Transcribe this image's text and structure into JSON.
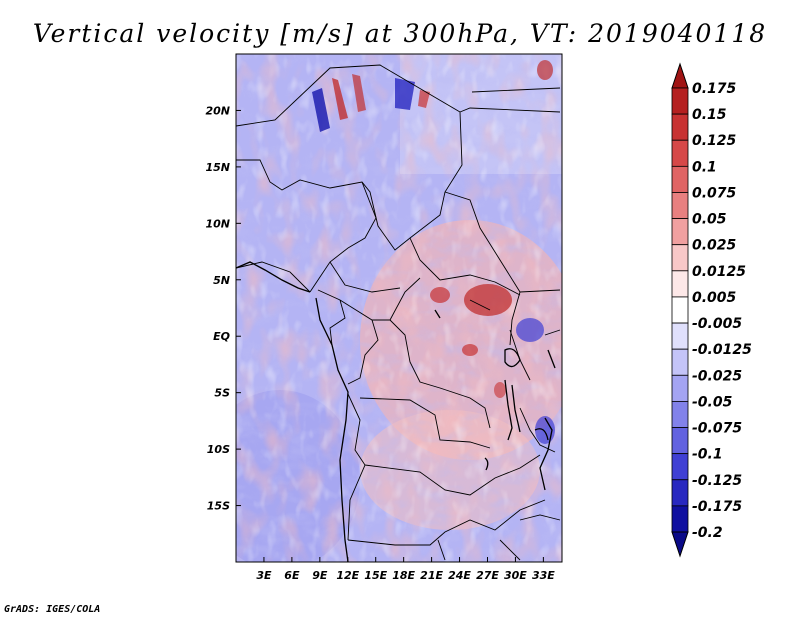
{
  "credit": "GrADS: IGES/COLA",
  "chart_data": {
    "type": "heatmap",
    "title": "Vertical velocity [m/s] at 300hPa, VT: 2019040118",
    "variable": "Vertical velocity",
    "units": "m/s",
    "level": "300hPa",
    "valid_time": "2019040118",
    "x_range": [
      0,
      35
    ],
    "y_range": [
      -20,
      25
    ],
    "x_ticks": [
      {
        "value": 3,
        "label": "3E"
      },
      {
        "value": 6,
        "label": "6E"
      },
      {
        "value": 9,
        "label": "9E"
      },
      {
        "value": 12,
        "label": "12E"
      },
      {
        "value": 15,
        "label": "15E"
      },
      {
        "value": 18,
        "label": "18E"
      },
      {
        "value": 21,
        "label": "21E"
      },
      {
        "value": 24,
        "label": "24E"
      },
      {
        "value": 27,
        "label": "27E"
      },
      {
        "value": 30,
        "label": "30E"
      },
      {
        "value": 33,
        "label": "33E"
      }
    ],
    "y_ticks": [
      {
        "value": 20,
        "label": "20N"
      },
      {
        "value": 15,
        "label": "15N"
      },
      {
        "value": 10,
        "label": "10N"
      },
      {
        "value": 5,
        "label": "5N"
      },
      {
        "value": 0,
        "label": "EQ"
      },
      {
        "value": -5,
        "label": "5S"
      },
      {
        "value": -10,
        "label": "10S"
      },
      {
        "value": -15,
        "label": "15S"
      }
    ],
    "colorbar": {
      "levels": [
        "0.175",
        "0.15",
        "0.125",
        "0.1",
        "0.075",
        "0.05",
        "0.025",
        "0.0125",
        "0.005",
        "-0.005",
        "-0.0125",
        "-0.025",
        "-0.05",
        "-0.075",
        "-0.1",
        "-0.125",
        "-0.175",
        "-0.2"
      ],
      "colors": [
        "#a01414",
        "#b52020",
        "#c83232",
        "#d64848",
        "#e06464",
        "#e88080",
        "#f0a0a0",
        "#f8c8c8",
        "#fde8e8",
        "#ffffff",
        "#e0e0fc",
        "#c4c4f8",
        "#a4a4f2",
        "#8282ea",
        "#6262e0",
        "#4040d4",
        "#2828c0",
        "#1010a0",
        "#0a0a88"
      ]
    }
  }
}
